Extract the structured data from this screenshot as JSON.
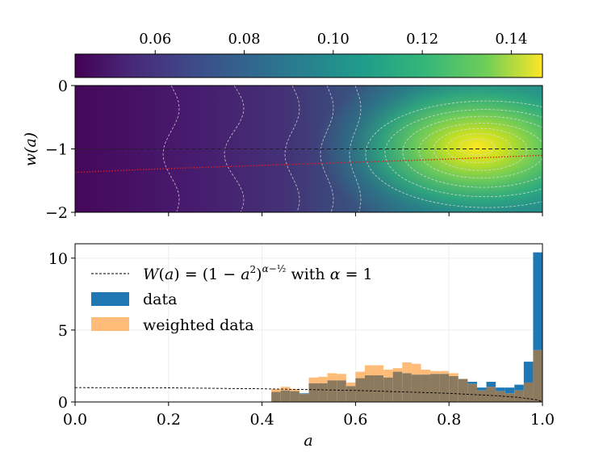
{
  "chart_data": [
    {
      "type": "heatmap",
      "colorbar": {
        "ticks": [
          0.06,
          0.08,
          0.1,
          0.12,
          0.14
        ],
        "tick_labels": [
          "0.06",
          "0.08",
          "0.10",
          "0.12",
          "0.14"
        ],
        "range": [
          0.042,
          0.147
        ],
        "colormap": "viridis",
        "position": "top"
      },
      "xlim": [
        0.0,
        1.0
      ],
      "ylim": [
        -2,
        0
      ],
      "yticks": [
        0,
        -1,
        -2
      ],
      "ytick_labels": [
        "0",
        "−1",
        "−2"
      ],
      "ylabel": "w(a)",
      "peak": {
        "a": 0.86,
        "w": -0.97,
        "value": 0.147
      },
      "reference_line": {
        "w": -1,
        "style": "dashed",
        "color": "#000000"
      },
      "fit_curve": {
        "color": "#e41a1c",
        "style": "dotted",
        "x": [
          0.0,
          0.2,
          0.4,
          0.6,
          0.8,
          1.0
        ],
        "y": [
          -1.37,
          -1.31,
          -1.26,
          -1.21,
          -1.16,
          -1.1
        ]
      }
    },
    {
      "type": "bar",
      "xlim": [
        0.0,
        1.0
      ],
      "ylim": [
        0,
        11
      ],
      "xticks": [
        0.0,
        0.2,
        0.4,
        0.6,
        0.8,
        1.0
      ],
      "xtick_labels": [
        "0.0",
        "0.2",
        "0.4",
        "0.6",
        "0.8",
        "1.0"
      ],
      "yticks": [
        0,
        5,
        10
      ],
      "ytick_labels": [
        "0",
        "5",
        "10"
      ],
      "xlabel": "a",
      "grid": true,
      "legend_position": "upper-left",
      "bin_width": 0.02,
      "bin_starts": [
        0.42,
        0.44,
        0.46,
        0.48,
        0.5,
        0.52,
        0.54,
        0.56,
        0.58,
        0.6,
        0.62,
        0.64,
        0.66,
        0.68,
        0.7,
        0.72,
        0.74,
        0.76,
        0.78,
        0.8,
        0.82,
        0.84,
        0.86,
        0.88,
        0.9,
        0.92,
        0.94,
        0.96,
        0.98
      ],
      "series": [
        {
          "name": "data",
          "color": "#1f77b4",
          "values": [
            0.7,
            0.8,
            0.75,
            0.6,
            1.3,
            1.3,
            1.5,
            1.5,
            1.1,
            1.65,
            1.85,
            1.85,
            1.7,
            2.1,
            2.0,
            1.9,
            1.9,
            1.95,
            1.95,
            1.8,
            1.6,
            1.4,
            1.0,
            1.4,
            1.0,
            1.0,
            1.2,
            2.8,
            10.4
          ]
        },
        {
          "name": "weighted data",
          "color": "#ffbb78",
          "values": [
            0.9,
            1.05,
            0.9,
            0.55,
            1.7,
            1.75,
            2.0,
            1.95,
            1.35,
            2.1,
            2.55,
            2.55,
            2.25,
            2.35,
            2.75,
            2.65,
            2.25,
            2.15,
            2.15,
            2.0,
            1.6,
            1.25,
            0.8,
            1.05,
            0.75,
            0.6,
            0.8,
            1.35,
            3.6
          ]
        }
      ],
      "overlap_color": "#8c7a5e",
      "reference_curve": {
        "alpha": 1,
        "style": "dashed",
        "color": "#000000",
        "x": [
          0.0,
          0.2,
          0.4,
          0.6,
          0.8,
          0.9,
          0.95,
          0.99,
          1.0
        ],
        "y": [
          1.0,
          0.98,
          0.917,
          0.8,
          0.6,
          0.436,
          0.312,
          0.141,
          0.0
        ]
      },
      "legend": [
        {
          "name": "reference",
          "label": "W(a) = (1 − a²)^(α−½) with α = 1"
        },
        {
          "name": "data",
          "label": "data"
        },
        {
          "name": "weighted-data",
          "label": "weighted data"
        }
      ]
    }
  ]
}
